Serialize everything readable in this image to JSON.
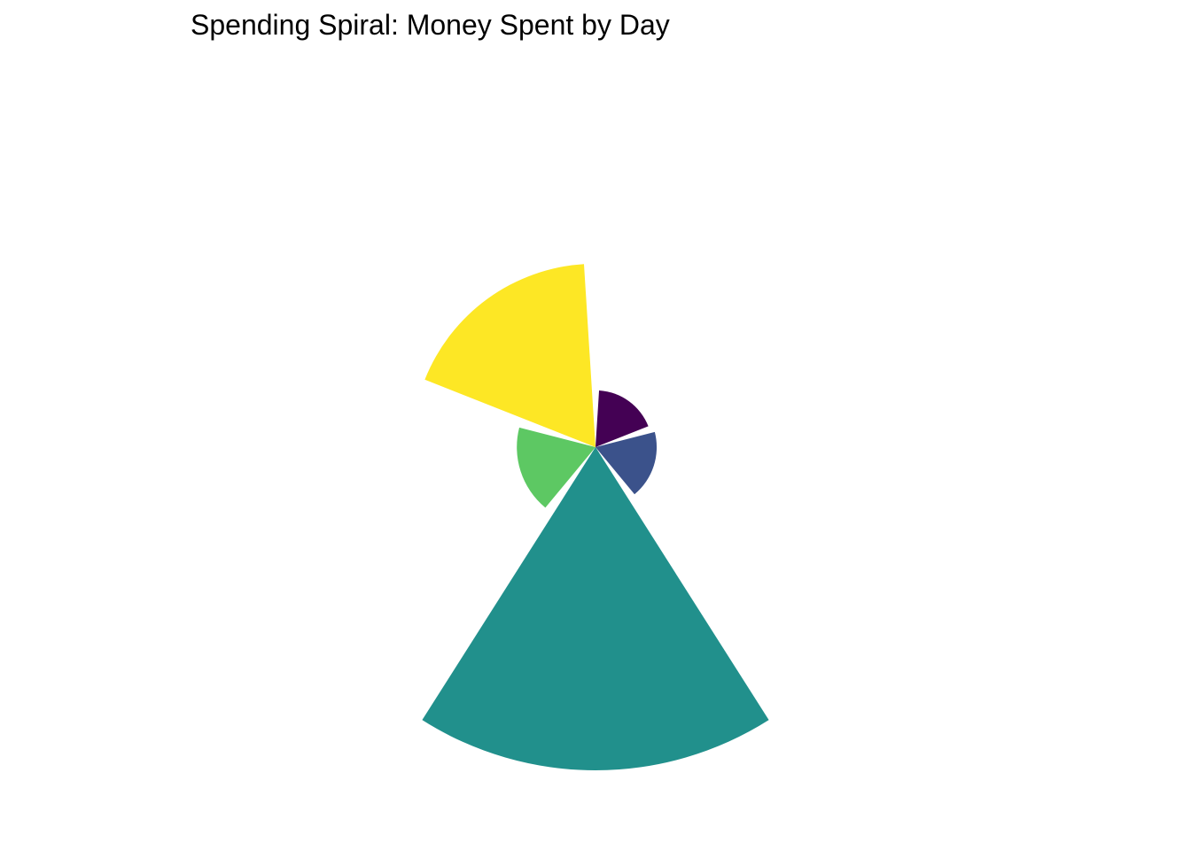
{
  "chart_data": {
    "type": "polar-bar",
    "title": "Spending Spiral: Money Spent by Day",
    "xlabel": "",
    "ylabel": "",
    "legend": "none",
    "grid": false,
    "values": [
      65,
      70,
      370,
      90,
      210
    ],
    "colors": [
      "#440154",
      "#3B528B",
      "#21908C",
      "#5DC863",
      "#FDE725"
    ]
  }
}
